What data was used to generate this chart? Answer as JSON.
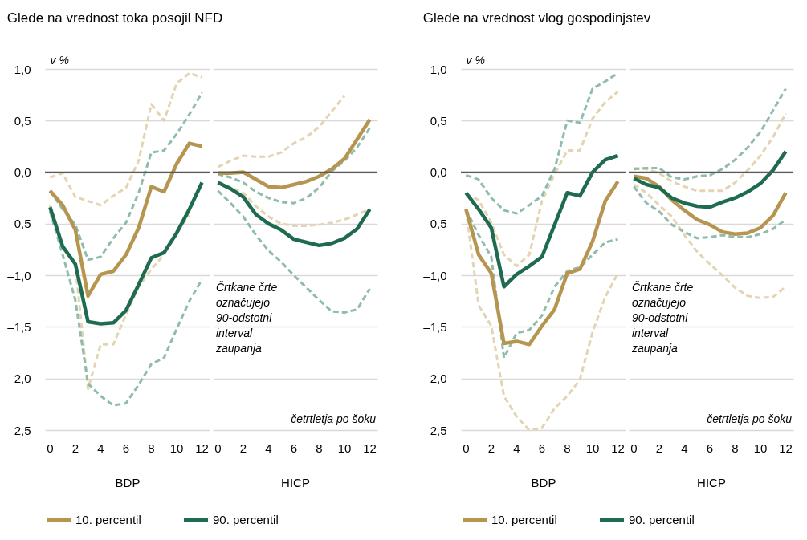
{
  "chart_data": [
    {
      "type": "line",
      "title": "Glede na vrednost toka posojil NFD",
      "ylabel": "v %",
      "xlabel": "BDP",
      "legend": "bottom",
      "grid": "y",
      "x": [
        0,
        1,
        2,
        3,
        4,
        5,
        6,
        7,
        8,
        9,
        10,
        11,
        12
      ],
      "xlim": [
        -0.4,
        12.6
      ],
      "xticks": [
        0,
        2,
        4,
        6,
        8,
        10,
        12
      ],
      "ylim": [
        -2.5,
        1.0
      ],
      "yticks": [
        {
          "value": 1,
          "label": "1,0"
        },
        {
          "value": 0.5,
          "label": "0,5"
        },
        {
          "value": 0,
          "label": "0,0"
        },
        {
          "value": -0.5,
          "label": "–0,5"
        },
        {
          "value": -1,
          "label": "–1,0"
        },
        {
          "value": -1.5,
          "label": "–1,5"
        },
        {
          "value": -2,
          "label": "–2,0"
        },
        {
          "value": -2.5,
          "label": "–2,5"
        }
      ],
      "ref_lines": [
        {
          "axis": "y",
          "value": 0,
          "color": "#595959"
        }
      ],
      "series": [
        {
          "color": "#e3d5b3",
          "line_style": "dashed",
          "values": [
            -0.05,
            -0.01,
            -0.24,
            -0.28,
            -0.32,
            -0.23,
            -0.15,
            0.11,
            0.66,
            0.5,
            0.86,
            0.96,
            0.92
          ]
        },
        {
          "color": "#e3d5b3",
          "line_style": "dashed",
          "values": [
            -0.32,
            -0.72,
            -0.9,
            -2.1,
            -1.67,
            -1.67,
            -1.38,
            -1.11,
            -0.94,
            -0.8,
            -0.59,
            -0.42,
            null
          ]
        },
        {
          "color": "#8fbcab",
          "line_style": "dashed",
          "values": [
            -0.18,
            -0.36,
            -0.51,
            -0.85,
            -0.82,
            -0.64,
            -0.49,
            -0.2,
            0.19,
            0.21,
            0.37,
            0.56,
            0.77
          ]
        },
        {
          "color": "#8fbcab",
          "line_style": "dashed",
          "values": [
            -0.38,
            -0.8,
            -1.24,
            -2.05,
            -2.17,
            -2.26,
            -2.24,
            -2.06,
            -1.86,
            -1.8,
            -1.52,
            -1.25,
            -1.04
          ]
        },
        {
          "name": "10. percentil",
          "color": "#b5954f",
          "values": [
            -0.18,
            -0.32,
            -0.56,
            -1.2,
            -0.99,
            -0.96,
            -0.8,
            -0.54,
            -0.14,
            -0.19,
            0.08,
            0.28,
            0.25
          ]
        },
        {
          "name": "90. percentil",
          "color": "#1f6b4f",
          "values": [
            -0.34,
            -0.72,
            -0.89,
            -1.45,
            -1.47,
            -1.46,
            -1.34,
            -1.09,
            -0.83,
            -0.78,
            -0.59,
            -0.36,
            -0.1
          ]
        }
      ]
    },
    {
      "type": "line",
      "xlabel": "HICP",
      "legend": "bottom",
      "grid": "y",
      "tick_labels": "x",
      "annotations": [
        "Črtkane črte\noznačujejo\n90-odstotni\ninterval\nzaupanja",
        "četrtletja po šoku"
      ],
      "x": [
        0,
        1,
        2,
        3,
        4,
        5,
        6,
        7,
        8,
        9,
        10,
        11,
        12
      ],
      "xlim": [
        -0.4,
        12.6
      ],
      "xticks": [
        0,
        2,
        4,
        6,
        8,
        10,
        12
      ],
      "ylim": [
        -2.5,
        1.0
      ],
      "yticks": [
        1,
        0.5,
        0,
        -0.5,
        -1,
        -1.5,
        -2,
        -2.5
      ],
      "ref_lines": [
        {
          "axis": "y",
          "value": 0,
          "color": "#595959"
        }
      ],
      "series": [
        {
          "color": "#e3d5b3",
          "line_style": "dashed",
          "values": [
            0.05,
            0.11,
            0.16,
            0.15,
            0.15,
            0.19,
            0.28,
            0.34,
            0.44,
            0.59,
            0.74,
            null,
            null
          ]
        },
        {
          "color": "#e3d5b3",
          "line_style": "dashed",
          "values": [
            -0.09,
            -0.15,
            -0.2,
            -0.33,
            -0.43,
            -0.5,
            -0.52,
            -0.52,
            -0.51,
            -0.49,
            -0.46,
            -0.41,
            -0.36
          ]
        },
        {
          "color": "#8fbcab",
          "line_style": "dashed",
          "values": [
            -0.02,
            -0.05,
            -0.1,
            -0.19,
            -0.25,
            -0.29,
            -0.3,
            -0.25,
            -0.15,
            0.01,
            0.11,
            0.24,
            0.43
          ]
        },
        {
          "color": "#8fbcab",
          "line_style": "dashed",
          "values": [
            -0.18,
            -0.3,
            -0.43,
            -0.61,
            -0.76,
            -0.87,
            -1.0,
            -1.12,
            -1.24,
            -1.35,
            -1.36,
            -1.33,
            -1.13
          ]
        },
        {
          "name": "10. percentil",
          "color": "#b5954f",
          "values": [
            -0.01,
            -0.01,
            0.0,
            -0.07,
            -0.14,
            -0.15,
            -0.12,
            -0.09,
            -0.04,
            0.03,
            0.13,
            0.32,
            0.51
          ]
        },
        {
          "name": "90. percentil",
          "color": "#1f6b4f",
          "values": [
            -0.1,
            -0.16,
            -0.24,
            -0.41,
            -0.5,
            -0.56,
            -0.65,
            -0.68,
            -0.71,
            -0.69,
            -0.64,
            -0.55,
            -0.36
          ]
        }
      ]
    },
    {
      "type": "line",
      "title": "Glede na vrednost vlog gospodinjstev",
      "ylabel": "v %",
      "xlabel": "BDP",
      "legend": "bottom",
      "grid": "y",
      "x": [
        0,
        1,
        2,
        3,
        4,
        5,
        6,
        7,
        8,
        9,
        10,
        11,
        12
      ],
      "xlim": [
        -0.4,
        12.6
      ],
      "xticks": [
        0,
        2,
        4,
        6,
        8,
        10,
        12
      ],
      "ylim": [
        -2.5,
        1.0
      ],
      "yticks": [
        {
          "value": 1,
          "label": "1,0"
        },
        {
          "value": 0.5,
          "label": "0,5"
        },
        {
          "value": 0,
          "label": "0,0"
        },
        {
          "value": -0.5,
          "label": "–0,5"
        },
        {
          "value": -1,
          "label": "–1,0"
        },
        {
          "value": -1.5,
          "label": "–1,5"
        },
        {
          "value": -2,
          "label": "–2,0"
        },
        {
          "value": -2.5,
          "label": "–2,5"
        }
      ],
      "ref_lines": [
        {
          "axis": "y",
          "value": 0,
          "color": "#595959"
        }
      ],
      "series": [
        {
          "color": "#e3d5b3",
          "line_style": "dashed",
          "values": [
            -0.21,
            -0.27,
            -0.49,
            -0.8,
            -0.91,
            -0.8,
            -0.28,
            -0.02,
            0.21,
            0.21,
            0.52,
            0.68,
            0.78
          ]
        },
        {
          "color": "#e3d5b3",
          "line_style": "dashed",
          "values": [
            -0.36,
            -1.29,
            -1.49,
            -2.17,
            -2.37,
            -2.5,
            -2.48,
            -2.29,
            -2.17,
            -2.01,
            -1.55,
            -1.21,
            -0.98
          ]
        },
        {
          "color": "#8fbcab",
          "line_style": "dashed",
          "values": [
            -0.03,
            -0.07,
            -0.25,
            -0.37,
            -0.4,
            -0.32,
            -0.23,
            0.03,
            0.5,
            0.48,
            0.81,
            0.88,
            0.96
          ]
        },
        {
          "color": "#8fbcab",
          "line_style": "dashed",
          "values": [
            -0.36,
            -0.61,
            -0.82,
            -1.8,
            -1.56,
            -1.53,
            -1.39,
            -1.11,
            -0.96,
            -0.92,
            -0.8,
            -0.68,
            -0.65
          ]
        },
        {
          "name": "10. percentil",
          "color": "#b5954f",
          "values": [
            -0.36,
            -0.8,
            -0.98,
            -1.66,
            -1.64,
            -1.67,
            -1.49,
            -1.33,
            -0.98,
            -0.94,
            -0.67,
            -0.28,
            -0.09
          ]
        },
        {
          "name": "90. percentil",
          "color": "#1f6b4f",
          "values": [
            -0.2,
            -0.36,
            -0.54,
            -1.11,
            -0.99,
            -0.91,
            -0.82,
            -0.51,
            -0.2,
            -0.23,
            0.0,
            0.12,
            0.16
          ]
        }
      ]
    },
    {
      "type": "line",
      "xlabel": "HICP",
      "legend": "bottom",
      "grid": "y",
      "tick_labels": "x",
      "annotations": [
        "Črtkane črte\noznačujejo\n90-odstotni\ninterval\nzaupanja",
        "četrtletja po šoku"
      ],
      "x": [
        0,
        1,
        2,
        3,
        4,
        5,
        6,
        7,
        8,
        9,
        10,
        11,
        12
      ],
      "xlim": [
        -0.4,
        12.6
      ],
      "xticks": [
        0,
        2,
        4,
        6,
        8,
        10,
        12
      ],
      "ylim": [
        -2.5,
        1.0
      ],
      "yticks": [
        1,
        0.5,
        0,
        -0.5,
        -1,
        -1.5,
        -2,
        -2.5
      ],
      "ref_lines": [
        {
          "axis": "y",
          "value": 0,
          "color": "#595959"
        }
      ],
      "series": [
        {
          "color": "#e3d5b3",
          "line_style": "dashed",
          "values": [
            0.04,
            0.03,
            -0.01,
            -0.09,
            -0.14,
            -0.18,
            -0.18,
            -0.18,
            -0.1,
            0.02,
            0.16,
            0.34,
            0.57
          ]
        },
        {
          "color": "#e3d5b3",
          "line_style": "dashed",
          "values": [
            -0.12,
            -0.2,
            -0.32,
            -0.43,
            -0.61,
            -0.77,
            -0.89,
            -1.0,
            -1.12,
            -1.2,
            -1.22,
            -1.21,
            -1.11
          ]
        },
        {
          "color": "#8fbcab",
          "line_style": "dashed",
          "values": [
            0.03,
            0.04,
            0.04,
            -0.05,
            -0.07,
            -0.04,
            -0.03,
            0.03,
            0.12,
            0.24,
            0.39,
            0.6,
            0.81
          ]
        },
        {
          "color": "#8fbcab",
          "line_style": "dashed",
          "values": [
            -0.14,
            -0.3,
            -0.38,
            -0.51,
            -0.58,
            -0.64,
            -0.63,
            -0.61,
            -0.63,
            -0.63,
            -0.6,
            -0.55,
            -0.46
          ]
        },
        {
          "name": "10. percentil",
          "color": "#b5954f",
          "values": [
            -0.04,
            -0.06,
            -0.14,
            -0.27,
            -0.37,
            -0.46,
            -0.51,
            -0.58,
            -0.6,
            -0.59,
            -0.54,
            -0.42,
            -0.2
          ]
        },
        {
          "name": "90. percentil",
          "color": "#1f6b4f",
          "values": [
            -0.06,
            -0.12,
            -0.15,
            -0.25,
            -0.3,
            -0.33,
            -0.34,
            -0.29,
            -0.25,
            -0.19,
            -0.11,
            0.02,
            0.2
          ]
        }
      ]
    }
  ]
}
